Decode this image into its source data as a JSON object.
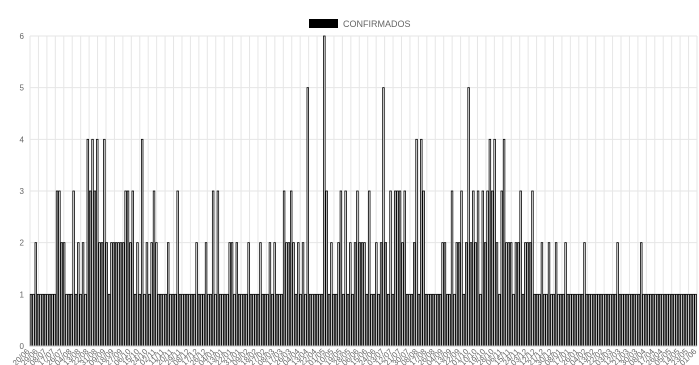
{
  "chart_data": {
    "type": "bar",
    "series": [
      {
        "name": "CONFIRMADOS",
        "color": "#000000",
        "values": [
          1,
          1,
          2,
          1,
          1,
          1,
          1,
          1,
          1,
          1,
          1,
          3,
          3,
          2,
          2,
          1,
          1,
          1,
          3,
          1,
          2,
          1,
          2,
          1,
          4,
          3,
          4,
          3,
          4,
          2,
          2,
          4,
          2,
          1,
          2,
          2,
          2,
          2,
          2,
          2,
          3,
          3,
          2,
          3,
          1,
          2,
          1,
          4,
          1,
          2,
          1,
          2,
          3,
          2,
          1,
          1,
          1,
          1,
          2,
          1,
          1,
          1,
          3,
          1,
          1,
          1,
          1,
          1,
          1,
          1,
          2,
          1,
          1,
          1,
          2,
          1,
          1,
          3,
          1,
          3,
          1,
          1,
          1,
          1,
          2,
          2,
          1,
          2,
          1,
          1,
          1,
          1,
          2,
          1,
          1,
          1,
          1,
          2,
          1,
          1,
          1,
          2,
          1,
          2,
          1,
          1,
          1,
          3,
          2,
          2,
          3,
          2,
          1,
          2,
          1,
          2,
          1,
          5,
          1,
          1,
          1,
          1,
          1,
          1,
          6,
          3,
          1,
          2,
          1,
          1,
          2,
          3,
          1,
          3,
          1,
          2,
          1,
          2,
          3,
          2,
          2,
          2,
          1,
          3,
          1,
          1,
          2,
          1,
          2,
          5,
          2,
          1,
          3,
          1,
          3,
          3,
          3,
          2,
          3,
          1,
          1,
          1,
          2,
          4,
          1,
          4,
          3,
          1,
          1,
          1,
          1,
          1,
          1,
          1,
          2,
          2,
          1,
          1,
          3,
          1,
          2,
          2,
          3,
          1,
          2,
          5,
          2,
          3,
          2,
          3,
          1,
          3,
          2,
          3,
          4,
          3,
          4,
          2,
          1,
          3,
          4,
          2,
          2,
          2,
          1,
          2,
          2,
          3,
          1,
          2,
          2,
          2,
          3,
          1,
          1,
          1,
          2,
          1,
          1,
          2,
          1,
          1,
          2,
          1,
          1,
          1,
          2,
          1,
          1,
          1,
          1,
          1,
          1,
          1,
          2,
          1,
          1,
          1,
          1,
          1,
          1,
          1,
          1,
          1,
          1,
          1,
          1,
          1,
          2,
          1,
          1,
          1,
          1,
          1,
          1,
          1,
          1,
          1,
          2,
          1,
          1,
          1,
          1,
          1,
          1,
          1,
          1,
          1,
          1,
          1,
          1,
          1,
          1,
          1,
          1,
          1,
          1,
          1,
          1,
          1,
          1,
          1
        ]
      }
    ],
    "x_tick_labels": [
      "20/06",
      "29/06",
      "08/07",
      "17/07",
      "26/07",
      "04/08",
      "13/08",
      "22/08",
      "31/08",
      "09/09",
      "18/09",
      "27/09",
      "06/10",
      "15/10",
      "24/10",
      "02/11",
      "11/11",
      "20/11",
      "29/11",
      "08/12",
      "17/12",
      "26/12",
      "04/01",
      "13/01",
      "22/01",
      "31/01",
      "09/02",
      "18/02",
      "27/02",
      "08/03",
      "17/03",
      "26/03",
      "04/04",
      "13/04",
      "22/04",
      "01/05",
      "10/05",
      "19/05",
      "28/05",
      "06/06",
      "15/06",
      "24/06",
      "03/07",
      "12/07",
      "21/07",
      "30/07",
      "08/08",
      "17/08",
      "26/08",
      "04/09",
      "13/09",
      "22/09",
      "01/10",
      "10/10",
      "19/10",
      "28/10",
      "06/11",
      "15/11",
      "24/11",
      "03/12",
      "12/12",
      "21/12",
      "30/12",
      "08/01",
      "17/01",
      "26/01",
      "04/02",
      "13/02",
      "22/02",
      "03/03",
      "12/03",
      "21/03",
      "30/03",
      "08/04",
      "17/04",
      "26/04",
      "05/05",
      "14/05",
      "23/05",
      "01/06"
    ],
    "y_ticks": [
      0,
      1,
      2,
      3,
      4,
      5,
      6
    ],
    "ylim": [
      0,
      6
    ],
    "grid": true,
    "legend_position": "top"
  }
}
